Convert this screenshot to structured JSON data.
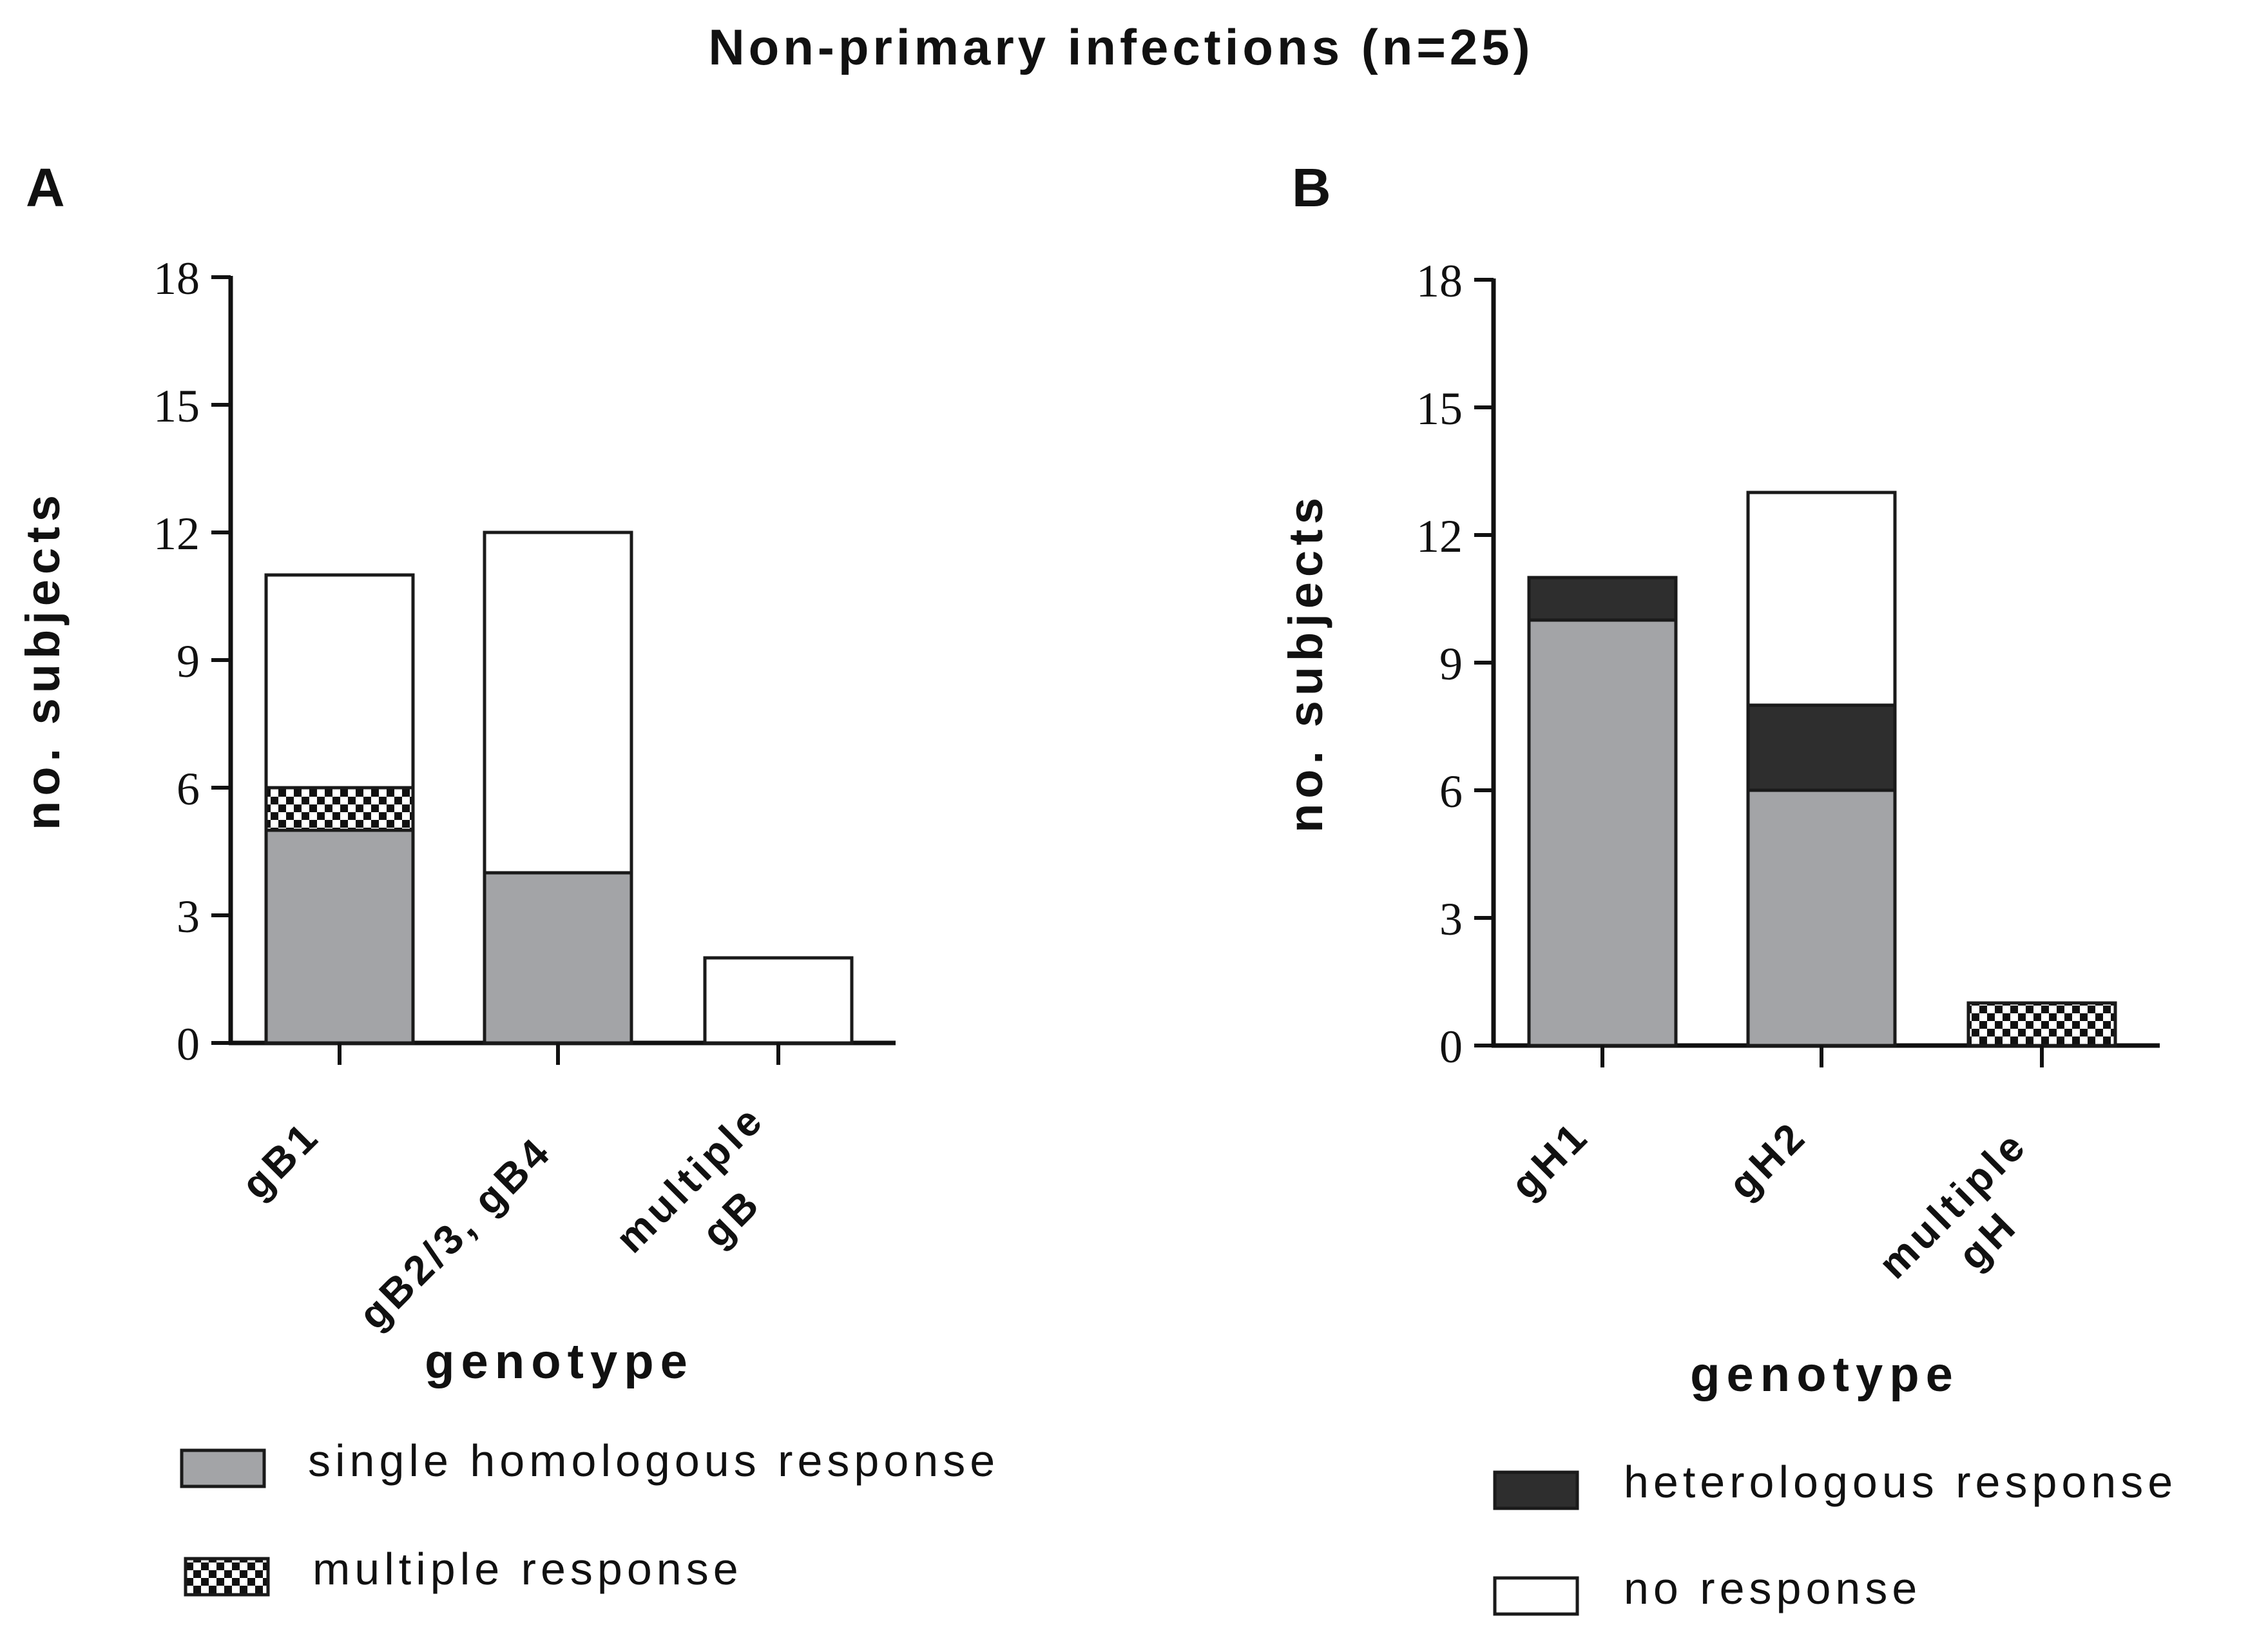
{
  "figure": {
    "title": "Non-primary infections (n=25)"
  },
  "colors": {
    "single": "#a3a4a7",
    "heterologous": "#2e2e2e",
    "none": "#ffffff",
    "outline": "#1a1a1a",
    "checker_dark": "#111111",
    "checker_light": "#ffffff"
  },
  "legend": [
    {
      "key": "single",
      "label": "single homologous response"
    },
    {
      "key": "multiple",
      "label": "multiple response"
    },
    {
      "key": "heterologous",
      "label": "heterologous response"
    },
    {
      "key": "none",
      "label": "no response"
    }
  ],
  "chart_data": [
    {
      "type": "bar",
      "stacked": true,
      "panel_label": "A",
      "title": "",
      "xlabel": "genotype",
      "ylabel": "no. subjects",
      "ylim": [
        0,
        18
      ],
      "yticks": [
        0,
        3,
        6,
        9,
        12,
        15,
        18
      ],
      "grid": false,
      "categories": [
        [
          "gB1"
        ],
        [
          "gB2/3, gB4"
        ],
        [
          "multiple",
          "gB"
        ]
      ],
      "series": [
        {
          "name": "single homologous response",
          "key": "single",
          "values": [
            5,
            4,
            0
          ]
        },
        {
          "name": "multiple response",
          "key": "multiple",
          "values": [
            1,
            0,
            0
          ]
        },
        {
          "name": "heterologous response",
          "key": "heterologous",
          "values": [
            0,
            0,
            0
          ]
        },
        {
          "name": "no response",
          "key": "none",
          "values": [
            5,
            8,
            2
          ]
        }
      ]
    },
    {
      "type": "bar",
      "stacked": true,
      "panel_label": "B",
      "title": "",
      "xlabel": "genotype",
      "ylabel": "no. subjects",
      "ylim": [
        0,
        18
      ],
      "yticks": [
        0,
        3,
        6,
        9,
        12,
        15,
        18
      ],
      "grid": false,
      "categories": [
        [
          "gH1"
        ],
        [
          "gH2"
        ],
        [
          "multiple",
          "gH"
        ]
      ],
      "series": [
        {
          "name": "single homologous response",
          "key": "single",
          "values": [
            10,
            6,
            0
          ]
        },
        {
          "name": "multiple response",
          "key": "multiple",
          "values": [
            0,
            0,
            1
          ]
        },
        {
          "name": "heterologous response",
          "key": "heterologous",
          "values": [
            1,
            2,
            0
          ]
        },
        {
          "name": "no response",
          "key": "none",
          "values": [
            0,
            5,
            0
          ]
        }
      ]
    }
  ]
}
